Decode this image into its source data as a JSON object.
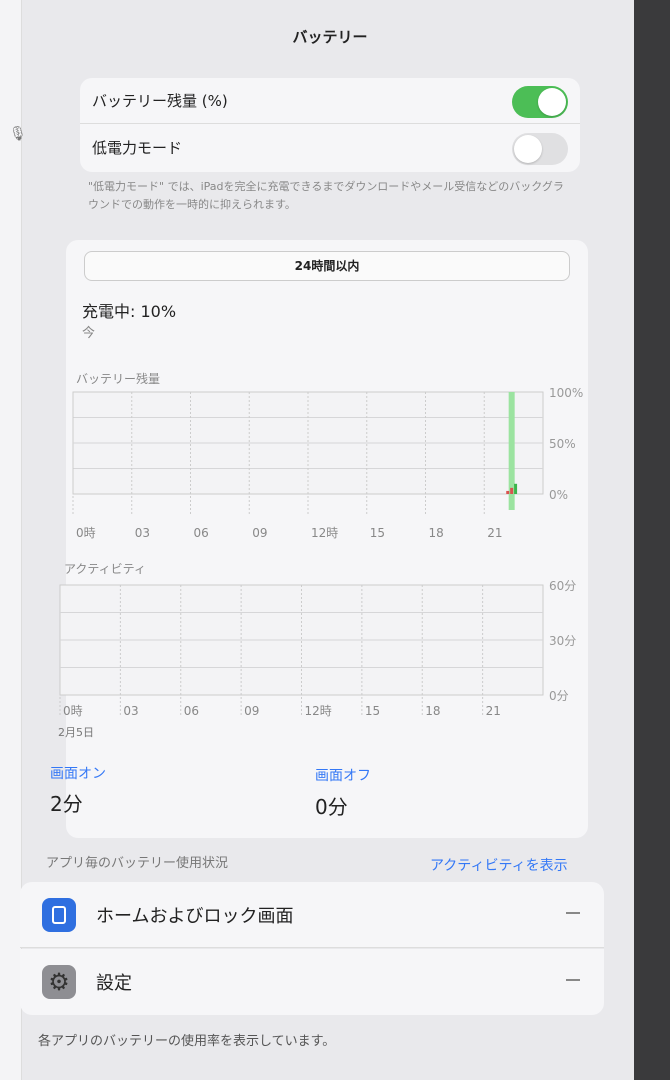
{
  "header": {
    "title": "バッテリー"
  },
  "settings": {
    "battery_percentage": {
      "label": "バッテリー残量 (%)",
      "on": true
    },
    "low_power_mode": {
      "label": "低電力モード",
      "on": false
    },
    "note": "\"低電力モード\" では、iPadを完全に充電できるまでダウンロードやメール受信などのバックグラウンドでの動作を一時的に抑えられます。"
  },
  "usage": {
    "range_tab": "24時間以内",
    "status": "充電中: 10%",
    "status_time": "今",
    "battery_chart_label": "バッテリー残量",
    "activity_chart_label": "アクティビティ",
    "date_label": "2月5日",
    "screen_on": {
      "label": "画面オン",
      "value": "2分"
    },
    "screen_off": {
      "label": "画面オフ",
      "value": "0分"
    }
  },
  "chart_data": [
    {
      "type": "bar",
      "title": "バッテリー残量",
      "x_ticks": [
        "0時",
        "03",
        "06",
        "09",
        "12時",
        "15",
        "18",
        "21"
      ],
      "y_ticks": [
        "100%",
        "50%",
        "0%"
      ],
      "ylim": [
        0,
        100
      ],
      "grid": true,
      "bars": [
        {
          "hour": 22.2,
          "value": 3,
          "color": "#d9534f"
        },
        {
          "hour": 22.4,
          "value": 6,
          "color": "#d9534f"
        },
        {
          "hour": 22.6,
          "value": 10,
          "color": "#3cb44b"
        }
      ],
      "charging_hour": 22.4,
      "colors": {
        "charging": "#9be3a0"
      }
    },
    {
      "type": "bar",
      "title": "アクティビティ",
      "x_ticks": [
        "0時",
        "03",
        "06",
        "09",
        "12時",
        "15",
        "18",
        "21"
      ],
      "y_ticks": [
        "60分",
        "30分",
        "0分"
      ],
      "ylim": [
        0,
        60
      ],
      "grid": true,
      "values": []
    }
  ],
  "apps": {
    "header": "アプリ毎のバッテリー使用状況",
    "show_activity": "アクティビティを表示",
    "items": [
      {
        "name": "ホームおよびロック画面",
        "usage": "—"
      },
      {
        "name": "設定",
        "usage": "—"
      }
    ],
    "footer": "各アプリのバッテリーの使用率を表示しています。"
  },
  "colors": {
    "accent": "#3478f6",
    "toggle_on": "#4cbe56"
  }
}
